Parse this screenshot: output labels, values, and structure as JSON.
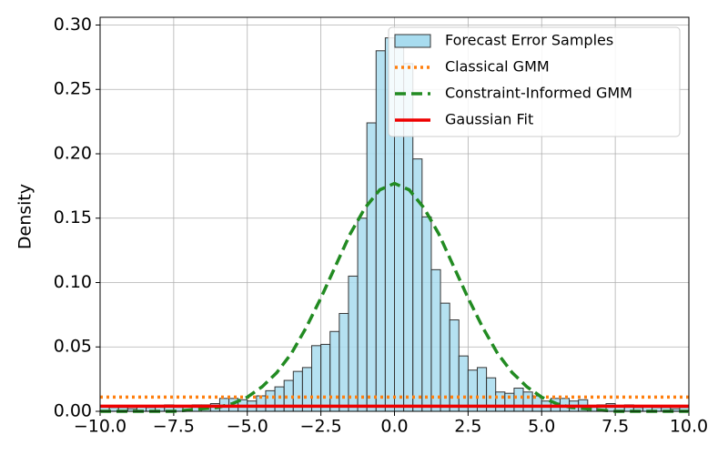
{
  "chart_data": {
    "type": "histogram",
    "ylabel": "Density",
    "xlim": [
      -10,
      10
    ],
    "ylim": [
      0,
      0.306
    ],
    "grid": true,
    "legend": "upper right",
    "xticks": [
      {
        "value": -10,
        "label": "−10.0"
      },
      {
        "value": -7.5,
        "label": "−7.5"
      },
      {
        "value": -5,
        "label": "−5.0"
      },
      {
        "value": -2.5,
        "label": "−2.5"
      },
      {
        "value": 0,
        "label": "0.0"
      },
      2.5,
      {
        "value": 5,
        "label": "5.0"
      },
      7.5,
      {
        "value": 10,
        "label": "10.0"
      }
    ],
    "yticks": [
      {
        "value": 0,
        "label": "0.00"
      },
      0.05,
      {
        "value": 0.1,
        "label": "0.10"
      },
      0.15,
      {
        "value": 0.2,
        "label": "0.20"
      },
      0.25,
      {
        "value": 0.3,
        "label": "0.30"
      }
    ],
    "series": [
      {
        "name": "Forecast Error Samples",
        "type": "histogram",
        "color": "#a8dcef",
        "bins": [
          -10,
          -9.6875,
          -9.375,
          -9.0625,
          -8.75,
          -8.4375,
          -8.125,
          -7.8125,
          -7.5,
          -7.1875,
          -6.875,
          -6.5625,
          -6.25,
          -5.9375,
          -5.625,
          -5.3125,
          -5,
          -4.6875,
          -4.375,
          -4.0625,
          -3.75,
          -3.4375,
          -3.125,
          -2.8125,
          -2.5,
          -2.1875,
          -1.875,
          -1.5625,
          -1.25,
          -0.9375,
          -0.625,
          -0.3125,
          0,
          0.3125,
          0.625,
          0.9375,
          1.25,
          1.5625,
          1.875,
          2.1875,
          2.5,
          2.8125,
          3.125,
          3.4375,
          3.75,
          4.0625,
          4.375,
          4.6875,
          5,
          5.3125,
          5.625,
          5.9375,
          6.25,
          6.5625,
          6.875,
          7.1875,
          7.5,
          7.8125,
          8.125,
          8.4375,
          8.75,
          9.0625,
          9.375,
          9.6875,
          10
        ],
        "values": [
          0.004,
          0.003,
          0.003,
          0.002,
          0.004,
          0.003,
          0.004,
          0.005,
          0.004,
          0.004,
          0.005,
          0.005,
          0.006,
          0.01,
          0.01,
          0.009,
          0.008,
          0.012,
          0.016,
          0.019,
          0.024,
          0.031,
          0.034,
          0.051,
          0.052,
          0.062,
          0.076,
          0.105,
          0.15,
          0.224,
          0.28,
          0.29,
          0.29,
          0.27,
          0.196,
          0.151,
          0.11,
          0.084,
          0.071,
          0.043,
          0.032,
          0.034,
          0.026,
          0.015,
          0.014,
          0.018,
          0.015,
          0.012,
          0.008,
          0.01,
          0.01,
          0.008,
          0.009,
          0.004,
          0.005,
          0.006,
          0.004,
          0.005,
          0.003,
          0.004,
          0.003,
          0.003,
          0.002,
          0.003
        ]
      },
      {
        "name": "Classical GMM",
        "type": "line",
        "style": "dotted",
        "color": "#ff7f0e",
        "x": [
          -10,
          10
        ],
        "values": [
          0.011,
          0.011
        ]
      },
      {
        "name": "Constraint-Informed GMM",
        "type": "line",
        "style": "dashed",
        "color": "#228b22",
        "x": [
          -10,
          -9.5,
          -9,
          -8.5,
          -8,
          -7.5,
          -7,
          -6.5,
          -6,
          -5.5,
          -5,
          -4.5,
          -4,
          -3.5,
          -3,
          -2.5,
          -2,
          -1.5,
          -1,
          -0.5,
          0,
          0.5,
          1,
          1.5,
          2,
          2.5,
          3,
          3.5,
          4,
          4.5,
          5,
          5.5,
          6,
          6.5,
          7,
          7.5,
          8,
          8.5,
          9,
          9.5,
          10
        ],
        "values": [
          0,
          0,
          0,
          0,
          0,
          0,
          0.001,
          0.002,
          0.003,
          0.006,
          0.011,
          0.019,
          0.03,
          0.045,
          0.065,
          0.088,
          0.113,
          0.138,
          0.158,
          0.172,
          0.177,
          0.172,
          0.158,
          0.138,
          0.113,
          0.088,
          0.065,
          0.045,
          0.03,
          0.019,
          0.011,
          0.006,
          0.003,
          0.002,
          0.001,
          0,
          0,
          0,
          0,
          0,
          0
        ]
      },
      {
        "name": "Gaussian Fit",
        "type": "line",
        "style": "solid",
        "color": "#ee0000",
        "x": [
          -10,
          10
        ],
        "values": [
          0.004,
          0.004
        ]
      }
    ]
  }
}
